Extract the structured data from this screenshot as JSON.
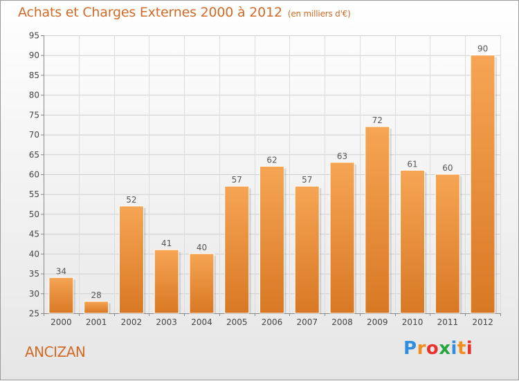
{
  "title": "Achats et Charges Externes 2000 à 2012",
  "subtitle": "(en milliers d'€)",
  "place": "ANCIZAN",
  "logo": {
    "text": "Proxiti",
    "colors": [
      "#2f8ee0",
      "#f28c1c",
      "#e8322b",
      "#27a53d",
      "#2f8ee0",
      "#f28c1c",
      "#e8322b"
    ]
  },
  "colors": {
    "bar_top": "#f6a554",
    "bar_bottom": "#d87824",
    "accent": "#d06a26"
  },
  "chart_data": {
    "type": "bar",
    "categories": [
      "2000",
      "2001",
      "2002",
      "2003",
      "2004",
      "2005",
      "2006",
      "2007",
      "2008",
      "2009",
      "2010",
      "2011",
      "2012"
    ],
    "values": [
      34,
      28,
      52,
      41,
      40,
      57,
      62,
      57,
      63,
      72,
      61,
      60,
      90
    ],
    "ylim": [
      25,
      95
    ],
    "yticks": [
      25,
      30,
      35,
      40,
      45,
      50,
      55,
      60,
      65,
      70,
      75,
      80,
      85,
      90,
      95
    ],
    "grid": true
  }
}
